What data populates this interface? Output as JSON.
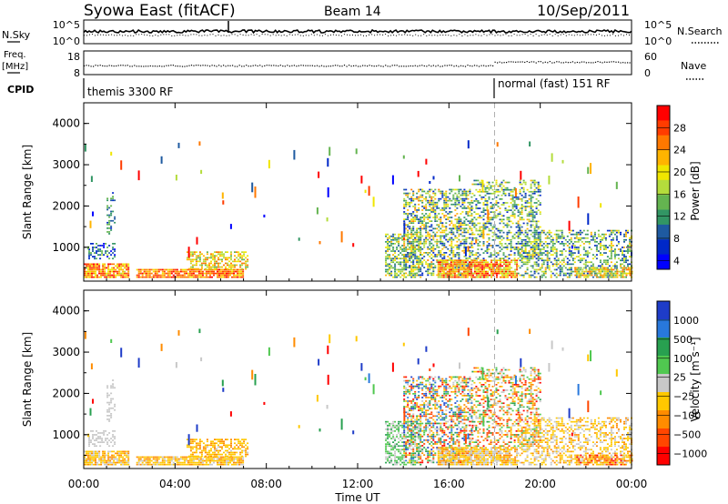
{
  "header": {
    "station": "Syowa East (fitACF)",
    "beam": "Beam 14",
    "date": "10/Sep/2011"
  },
  "strip_nsky": {
    "left_label": "N.Sky",
    "right_label": "N.Search",
    "ticks_left": [
      "10^5",
      "10^0"
    ],
    "ticks_right": [
      "10^5",
      "10^0"
    ]
  },
  "strip_freq": {
    "left_label_1": "Freq.",
    "left_label_2": "[MHz]",
    "right_label": "Nave",
    "ticks_left": [
      "18",
      "8"
    ],
    "ticks_right": [
      "60",
      "0"
    ]
  },
  "cpid": {
    "label": "CPID",
    "modes": [
      {
        "name": "themis 3300 RF",
        "start_hour": 0
      },
      {
        "name": "normal (fast) 151 RF",
        "start_hour": 18
      }
    ]
  },
  "chart_data": [
    {
      "type": "heatmap",
      "panel": "power",
      "xlabel": "",
      "ylabel": "Slant Range [km]",
      "xlim": [
        0,
        24
      ],
      "ylim": [
        180,
        4500
      ],
      "yticks": [
        "1000",
        "2000",
        "3000",
        "4000"
      ],
      "colorbar_label": "Power [dB]",
      "colorbar_ticks": [
        "28",
        "24",
        "20",
        "16",
        "12",
        "8",
        "4"
      ],
      "colorbar_colors": [
        "#ff0000",
        "#ff3c00",
        "#ff7800",
        "#ffb400",
        "#f0e600",
        "#b4dc3c",
        "#64b450",
        "#329664",
        "#1e5aa0",
        "#0028c8",
        "#0000ff"
      ],
      "bands": [
        {
          "t0": 0.0,
          "t1": 2.0,
          "r0": 250,
          "r1": 600,
          "density": 0.85,
          "vmin": 18,
          "vmax": 30
        },
        {
          "t0": 0.2,
          "t1": 1.4,
          "r0": 700,
          "r1": 1100,
          "density": 0.4,
          "vmin": 4,
          "vmax": 16
        },
        {
          "t0": 1.0,
          "t1": 1.4,
          "r0": 1300,
          "r1": 2300,
          "density": 0.35,
          "vmin": 6,
          "vmax": 16
        },
        {
          "t0": 2.3,
          "t1": 7.0,
          "r0": 250,
          "r1": 450,
          "density": 0.9,
          "vmin": 20,
          "vmax": 30
        },
        {
          "t0": 4.5,
          "t1": 7.2,
          "r0": 450,
          "r1": 900,
          "density": 0.55,
          "vmin": 14,
          "vmax": 26
        },
        {
          "t0": 13.2,
          "t1": 14.8,
          "r0": 250,
          "r1": 1300,
          "density": 0.6,
          "vmin": 8,
          "vmax": 22
        },
        {
          "t0": 14.0,
          "t1": 17.0,
          "r0": 300,
          "r1": 2400,
          "density": 0.5,
          "vmin": 6,
          "vmax": 24
        },
        {
          "t0": 15.5,
          "t1": 19.0,
          "r0": 250,
          "r1": 700,
          "density": 0.85,
          "vmin": 16,
          "vmax": 30
        },
        {
          "t0": 17.0,
          "t1": 20.0,
          "r0": 700,
          "r1": 2600,
          "density": 0.4,
          "vmin": 6,
          "vmax": 22
        },
        {
          "t0": 19.0,
          "t1": 24.0,
          "r0": 250,
          "r1": 1400,
          "density": 0.45,
          "vmin": 6,
          "vmax": 22
        },
        {
          "t0": 21.5,
          "t1": 24.0,
          "r0": 250,
          "r1": 500,
          "density": 0.6,
          "vmin": 14,
          "vmax": 26
        }
      ]
    },
    {
      "type": "heatmap",
      "panel": "velocity",
      "xlabel": "Time UT",
      "ylabel": "Slant Range [km]",
      "xlim": [
        0,
        24
      ],
      "ylim": [
        180,
        4500
      ],
      "xticks": [
        "00:00",
        "04:00",
        "08:00",
        "12:00",
        "16:00",
        "20:00",
        "00:00"
      ],
      "yticks": [
        "1000",
        "2000",
        "3000",
        "4000"
      ],
      "colorbar_label": "Velocity [m s⁻¹]",
      "colorbar_ticks": [
        "1000",
        "500",
        "100",
        "25",
        "−25",
        "−100",
        "−500",
        "−1000"
      ],
      "colorbar_colors": [
        "#1e3cc8",
        "#2878dc",
        "#28a050",
        "#50c850",
        "#c8c8c8",
        "#ffc800",
        "#ff8c00",
        "#ff4600",
        "#ff0000"
      ],
      "bands": [
        {
          "t0": 0.0,
          "t1": 2.0,
          "r0": 250,
          "r1": 600,
          "density": 0.85,
          "vmin": -500,
          "vmax": -25
        },
        {
          "t0": 0.2,
          "t1": 1.4,
          "r0": 700,
          "r1": 1100,
          "density": 0.4,
          "vmin": -100,
          "vmax": 100
        },
        {
          "t0": 1.0,
          "t1": 1.4,
          "r0": 1300,
          "r1": 2300,
          "density": 0.35,
          "vmin": -100,
          "vmax": 100
        },
        {
          "t0": 2.3,
          "t1": 7.0,
          "r0": 250,
          "r1": 450,
          "density": 0.9,
          "vmin": -500,
          "vmax": -25
        },
        {
          "t0": 4.5,
          "t1": 7.2,
          "r0": 450,
          "r1": 900,
          "density": 0.55,
          "vmin": -500,
          "vmax": -100
        },
        {
          "t0": 13.2,
          "t1": 14.8,
          "r0": 250,
          "r1": 1300,
          "density": 0.6,
          "vmin": -100,
          "vmax": 500
        },
        {
          "t0": 14.0,
          "t1": 17.0,
          "r0": 300,
          "r1": 2400,
          "density": 0.5,
          "vmin": -1000,
          "vmax": 1000
        },
        {
          "t0": 15.5,
          "t1": 19.0,
          "r0": 250,
          "r1": 700,
          "density": 0.85,
          "vmin": -500,
          "vmax": 25
        },
        {
          "t0": 17.0,
          "t1": 20.0,
          "r0": 700,
          "r1": 2600,
          "density": 0.4,
          "vmin": -1000,
          "vmax": 500
        },
        {
          "t0": 19.0,
          "t1": 24.0,
          "r0": 250,
          "r1": 1400,
          "density": 0.45,
          "vmin": -500,
          "vmax": 100
        },
        {
          "t0": 21.5,
          "t1": 24.0,
          "r0": 250,
          "r1": 500,
          "density": 0.6,
          "vmin": -1000,
          "vmax": -100
        }
      ]
    }
  ]
}
